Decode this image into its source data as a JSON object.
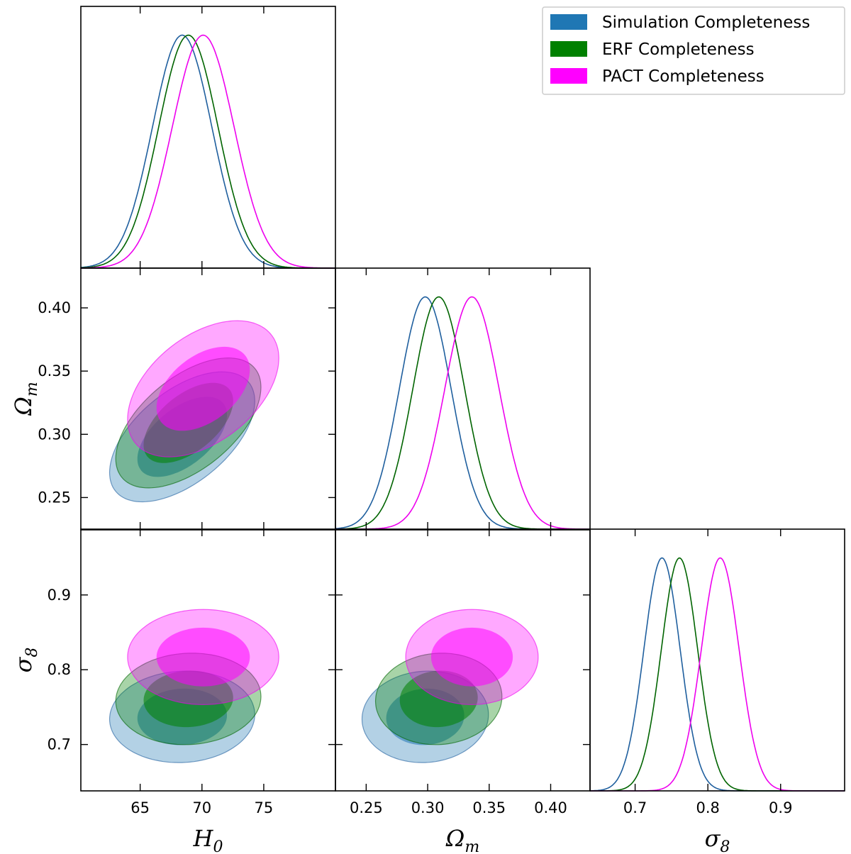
{
  "chart_data": {
    "type": "corner",
    "parameters": [
      {
        "key": "H0",
        "symbol": "H",
        "sub": "0",
        "range": [
          60.2,
          80.8
        ],
        "ticks": [
          65,
          70,
          75
        ],
        "tick_labels": [
          "65",
          "70",
          "75"
        ]
      },
      {
        "key": "Om",
        "symbol": "Ω",
        "sub": "m",
        "range": [
          0.225,
          0.432
        ],
        "ticks": [
          0.25,
          0.3,
          0.35,
          0.4
        ],
        "tick_labels": [
          "0.25",
          "0.30",
          "0.35",
          "0.40"
        ]
      },
      {
        "key": "s8",
        "symbol": "σ",
        "sub": "8",
        "range": [
          0.638,
          0.988
        ],
        "ticks": [
          0.7,
          0.8,
          0.9
        ],
        "tick_labels": [
          "0.7",
          "0.8",
          "0.9"
        ]
      }
    ],
    "series": [
      {
        "name": "Simulation Completeness",
        "line_color": "#1f5f9e",
        "fill_color": "#1f77b4",
        "mean": {
          "H0": 68.4,
          "Om": 0.298,
          "s8": 0.737
        },
        "sigma": {
          "H0": 2.4,
          "Om": 0.021,
          "s8": 0.025
        },
        "corr": {
          "H0_Om": 0.55,
          "H0_s8": 0.05,
          "Om_s8": 0.05
        }
      },
      {
        "name": "ERF Completeness",
        "line_color": "#006400",
        "fill_color": "#008000",
        "mean": {
          "H0": 68.9,
          "Om": 0.309,
          "s8": 0.761
        },
        "sigma": {
          "H0": 2.4,
          "Om": 0.021,
          "s8": 0.025
        },
        "corr": {
          "H0_Om": 0.55,
          "H0_s8": 0.05,
          "Om_s8": 0.05
        }
      },
      {
        "name": "PACT Completeness",
        "line_color": "#ee00ee",
        "fill_color": "#ff00ff",
        "mean": {
          "H0": 70.1,
          "Om": 0.336,
          "s8": 0.817
        },
        "sigma": {
          "H0": 2.5,
          "Om": 0.022,
          "s8": 0.026
        },
        "corr": {
          "H0_Om": 0.45,
          "H0_s8": 0.0,
          "Om_s8": 0.0
        }
      }
    ],
    "legend": {
      "position": "top-right"
    },
    "contour_levels": [
      "68%",
      "95%"
    ]
  }
}
